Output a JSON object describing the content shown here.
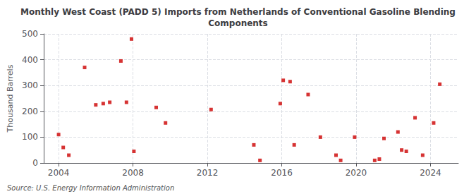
{
  "chart_data": {
    "type": "scatter",
    "title": "Monthly West Coast (PADD 5) Imports from Netherlands of Conventional Gasoline Blending\nComponents",
    "ylabel": "Thousand Barrels",
    "annotation": "Source: U.S. Energy Information Administration",
    "color": "#cc0000",
    "marker": "square",
    "grid": true,
    "xlim": [
      2003.2,
      2025.5
    ],
    "ylim": [
      0,
      500
    ],
    "xticks": [
      2004,
      2008,
      2012,
      2016,
      2020,
      2024
    ],
    "yticks": [
      0,
      100,
      200,
      300,
      400,
      500
    ],
    "x": [
      2004.0,
      2004.25,
      2004.55,
      2005.4,
      2006.0,
      2006.4,
      2006.75,
      2007.35,
      2007.65,
      2007.92,
      2008.05,
      2009.25,
      2009.75,
      2012.2,
      2014.5,
      2014.83,
      2015.92,
      2016.08,
      2016.45,
      2016.67,
      2017.42,
      2018.08,
      2018.92,
      2019.17,
      2019.92,
      2021.0,
      2021.25,
      2021.5,
      2022.25,
      2022.45,
      2022.7,
      2023.17,
      2023.58,
      2024.17,
      2024.5
    ],
    "values": [
      110,
      60,
      30,
      370,
      225,
      230,
      235,
      395,
      235,
      480,
      45,
      215,
      155,
      207,
      70,
      10,
      230,
      320,
      315,
      70,
      265,
      100,
      30,
      10,
      100,
      10,
      15,
      95,
      120,
      50,
      45,
      175,
      30,
      155,
      305
    ]
  }
}
